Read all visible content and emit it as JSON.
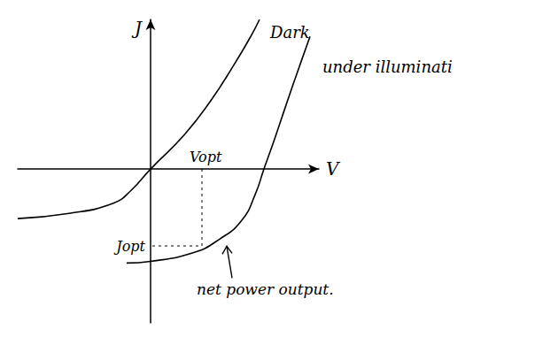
{
  "chart_data": {
    "type": "line",
    "x_label": "V",
    "y_label": "J",
    "xlim": [
      -3,
      3.8
    ],
    "ylim": [
      -3.6,
      3.5
    ],
    "tick_labels": false,
    "grid": false,
    "series": [
      {
        "name": "Dark",
        "color": "#000000",
        "line_style": "solid",
        "x": [
          -3.0,
          -1.84,
          -0.84,
          -0.44,
          0,
          0.76,
          1.36,
          1.86,
          2.26,
          2.46
        ],
        "values": [
          -1.16,
          -1.04,
          -0.8,
          -0.5,
          0,
          0.8,
          1.6,
          2.4,
          3.1,
          3.5
        ]
      },
      {
        "name": "under illuminati",
        "color": "#000000",
        "line_style": "solid",
        "x": [
          -0.54,
          0,
          0.96,
          1.56,
          2.06,
          2.36,
          2.56,
          2.8,
          3.06,
          3.36,
          3.6
        ],
        "values": [
          -2.2,
          -2.16,
          -1.96,
          -1.64,
          -1.2,
          -0.6,
          0,
          0.7,
          1.5,
          2.4,
          3.1
        ]
      }
    ],
    "optimum": {
      "x": 1.16,
      "y": -1.8,
      "x_label": "Vopt",
      "y_label": "Jopt"
    },
    "annotations": [
      {
        "text": "net power output.",
        "x": 1.72,
        "y": -1.64
      }
    ]
  }
}
